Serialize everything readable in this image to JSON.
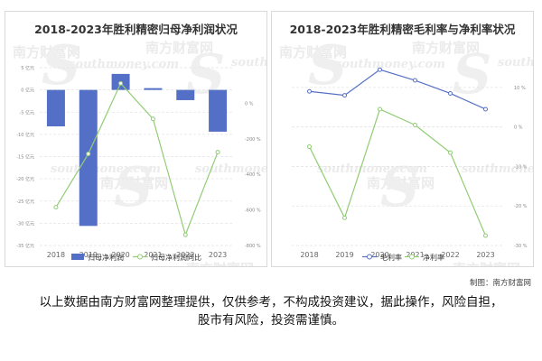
{
  "footer": {
    "credit": "制图：南方财富网",
    "disclaimer": "以上数据由南方财富网整理提供，仅供参考，不构成投资建议，据此操作，风险自担，股市有风险，投资需谨慎。"
  },
  "watermark": {
    "cn": "南方财富网",
    "en": "southmoney.com"
  },
  "chart_data": [
    {
      "type": "bar+line",
      "title": "2018-2023年胜利精密归母净利润状况",
      "categories": [
        "2018",
        "2019",
        "2020",
        "2021",
        "2022",
        "2023"
      ],
      "series": [
        {
          "name": "归母净利润",
          "type": "bar",
          "axis": "left",
          "color": "#5470c6",
          "values": [
            -8.2,
            -30.6,
            3.6,
            0.4,
            -2.3,
            -9.4
          ]
        },
        {
          "name": "归母净利润同比",
          "type": "line",
          "axis": "right",
          "color": "#91cc75",
          "values": [
            -585,
            -285,
            112,
            -88,
            -740,
            -275
          ]
        }
      ],
      "left_axis": {
        "min": -35,
        "max": 5,
        "step": 5,
        "ticks": [
          "5 亿元",
          "0 亿元",
          "-5 亿元",
          "-10 亿元",
          "-15 亿元",
          "-20 亿元",
          "-25 亿元",
          "-30 亿元",
          "-35 亿元"
        ]
      },
      "right_axis": {
        "min": -800,
        "max": 200,
        "ticks": [
          "0 %",
          "-200 %",
          "-400 %",
          "-600 %",
          "-800 %"
        ],
        "tick_values": [
          0,
          -200,
          -400,
          -600,
          -800
        ]
      },
      "legend_position": "bottom"
    },
    {
      "type": "line",
      "title": "2018-2023年胜利精密毛利率与净利率状况",
      "categories": [
        "2018",
        "2019",
        "2020",
        "2021",
        "2022",
        "2023"
      ],
      "series": [
        {
          "name": "毛利率",
          "color": "#5470c6",
          "values": [
            9.0,
            8.0,
            14.5,
            11.8,
            8.5,
            4.5
          ]
        },
        {
          "name": "净利率",
          "color": "#91cc75",
          "values": [
            -5.0,
            -23.0,
            4.5,
            0.5,
            -6.5,
            -27.5
          ]
        }
      ],
      "right_axis": {
        "min": -30,
        "max": 15,
        "ticks": [
          "10 %",
          "0 %",
          "-10 %",
          "-20 %",
          "-30 %"
        ],
        "tick_values": [
          10,
          0,
          -10,
          -20,
          -30
        ]
      },
      "legend_position": "bottom"
    }
  ]
}
